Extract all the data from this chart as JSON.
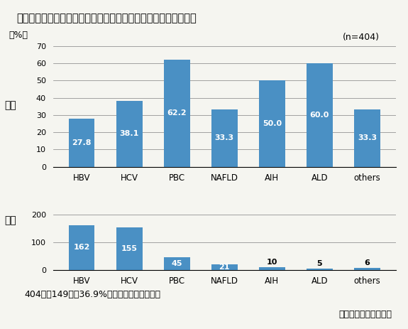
{
  "title": "図１　当院のアンケート調査による慢性肝疾患患者の痒みの頻度",
  "n_label": "(n=404)",
  "categories": [
    "HBV",
    "HCV",
    "PBC",
    "NAFLD",
    "AIH",
    "ALD",
    "others"
  ],
  "freq_values": [
    27.8,
    38.1,
    62.2,
    33.3,
    50.0,
    60.0,
    33.3
  ],
  "count_values": [
    162,
    155,
    45,
    21,
    10,
    5,
    6
  ],
  "bar_color": "#4a90c4",
  "freq_ylabel": "頻度",
  "count_ylabel": "人数",
  "freq_unit": "（%）",
  "freq_ylim": [
    0,
    70
  ],
  "freq_yticks": [
    0,
    10,
    20,
    30,
    40,
    50,
    60,
    70
  ],
  "count_ylim": [
    0,
    200
  ],
  "count_yticks": [
    0,
    100,
    200
  ],
  "footer_left": "404人中149人（36.9%）が痒みを感じている",
  "footer_right": "札幌厚生病院肝臓内科",
  "background_color": "#f5f5f0"
}
